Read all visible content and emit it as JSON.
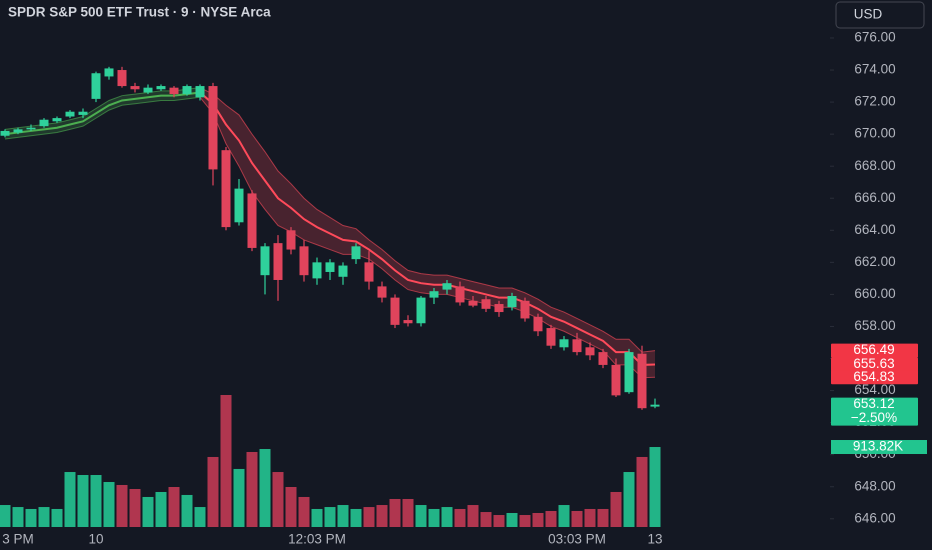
{
  "chart_data": {
    "type": "candlestick",
    "title": "SPDR S&P 500 ETF Trust · 9 · NYSE Arca",
    "currency": "USD",
    "categories": [
      null,
      "3 PM",
      null,
      null,
      null,
      null,
      null,
      "10",
      null,
      null,
      null,
      null,
      null,
      null,
      null,
      null,
      null,
      null,
      null,
      null,
      null,
      null,
      null,
      null,
      "12:03 PM",
      null,
      null,
      null,
      null,
      null,
      null,
      null,
      null,
      null,
      null,
      null,
      null,
      null,
      null,
      null,
      null,
      null,
      null,
      null,
      "03:03 PM",
      null,
      null,
      null,
      null,
      null,
      "13"
    ],
    "open": [
      669.9,
      670.1,
      670.3,
      670.5,
      670.8,
      671.1,
      671.2,
      672.2,
      673.6,
      674.0,
      673.0,
      672.6,
      672.8,
      672.9,
      672.5,
      672.3,
      673.0,
      669.0,
      664.5,
      666.3,
      661.2,
      663.2,
      664.0,
      663.0,
      661.0,
      661.4,
      661.1,
      662.2,
      662.0,
      660.5,
      659.8,
      658.4,
      658.2,
      659.8,
      660.3,
      660.5,
      659.6,
      659.7,
      659.4,
      659.2,
      659.6,
      658.6,
      657.9,
      656.7,
      657.2,
      656.7,
      656.4,
      655.6,
      653.9,
      656.3,
      653.0
    ],
    "high": [
      670.3,
      670.4,
      670.6,
      671.0,
      671.1,
      671.5,
      671.6,
      673.9,
      674.2,
      674.2,
      673.2,
      673.1,
      673.1,
      673.0,
      673.1,
      673.1,
      673.2,
      669.2,
      667.2,
      666.5,
      663.2,
      663.7,
      664.2,
      663.4,
      662.3,
      662.2,
      662.0,
      663.2,
      662.7,
      660.8,
      660.0,
      658.7,
      659.9,
      660.4,
      660.9,
      660.8,
      659.9,
      659.9,
      659.6,
      660.1,
      659.8,
      658.8,
      658.1,
      657.4,
      657.6,
      657.0,
      656.6,
      656.0,
      656.6,
      656.8,
      653.5
    ],
    "low": [
      669.8,
      670.0,
      670.2,
      670.4,
      670.7,
      671.0,
      671.0,
      672.0,
      673.4,
      672.9,
      672.6,
      672.5,
      672.7,
      672.3,
      672.4,
      672.1,
      666.8,
      664.0,
      664.3,
      662.7,
      660.0,
      659.6,
      662.5,
      660.8,
      660.6,
      660.9,
      660.6,
      661.9,
      660.3,
      659.5,
      657.9,
      658.0,
      658.0,
      659.4,
      660.0,
      659.3,
      659.2,
      658.9,
      658.6,
      659.0,
      658.3,
      657.4,
      656.6,
      656.5,
      656.2,
      655.9,
      655.4,
      653.6,
      653.8,
      652.8,
      652.9
    ],
    "close": [
      670.2,
      670.3,
      670.4,
      670.9,
      671.0,
      671.4,
      671.4,
      673.8,
      674.1,
      673.0,
      672.8,
      672.9,
      673.0,
      672.5,
      673.0,
      673.0,
      667.8,
      664.2,
      666.6,
      662.9,
      663.0,
      660.9,
      662.8,
      661.2,
      662.0,
      662.0,
      661.8,
      663.0,
      660.8,
      659.8,
      658.1,
      658.2,
      659.8,
      660.2,
      660.7,
      659.5,
      659.3,
      659.1,
      658.9,
      659.9,
      658.5,
      657.7,
      656.8,
      657.2,
      656.4,
      656.2,
      655.6,
      653.7,
      656.4,
      652.9,
      653.12
    ],
    "volume": [
      251000,
      228000,
      206000,
      228000,
      206000,
      628000,
      594000,
      594000,
      514000,
      480000,
      434000,
      343000,
      400000,
      457000,
      366000,
      228000,
      800000,
      1508000,
      663000,
      857000,
      891000,
      628000,
      457000,
      343000,
      206000,
      228000,
      251000,
      206000,
      228000,
      251000,
      320000,
      320000,
      251000,
      206000,
      228000,
      206000,
      251000,
      171000,
      137000,
      160000,
      137000,
      160000,
      183000,
      251000,
      183000,
      206000,
      206000,
      400000,
      628000,
      800000,
      913820
    ],
    "volume_last_label": "913.82K",
    "ema_mid": [
      670.0,
      670.1,
      670.2,
      670.3,
      670.4,
      670.6,
      670.8,
      671.3,
      671.8,
      672.1,
      672.2,
      672.3,
      672.4,
      672.4,
      672.5,
      672.6,
      671.9,
      670.6,
      669.6,
      668.2,
      667.1,
      666.0,
      665.4,
      664.7,
      664.2,
      663.8,
      663.4,
      663.3,
      662.8,
      662.2,
      661.5,
      660.9,
      660.7,
      660.6,
      660.6,
      660.4,
      660.2,
      660.0,
      659.8,
      659.8,
      659.5,
      659.1,
      658.6,
      658.3,
      657.9,
      657.5,
      657.1,
      656.4,
      656.4,
      655.6,
      655.63
    ],
    "ema_upper": [
      670.3,
      670.4,
      670.5,
      670.6,
      670.7,
      670.9,
      671.1,
      671.6,
      672.1,
      672.4,
      672.5,
      672.6,
      672.7,
      672.7,
      672.8,
      672.9,
      672.5,
      671.8,
      671.2,
      670.0,
      668.9,
      667.7,
      666.9,
      666.0,
      665.3,
      664.8,
      664.3,
      664.1,
      663.4,
      662.8,
      662.1,
      661.5,
      661.3,
      661.2,
      661.2,
      661.0,
      660.8,
      660.6,
      660.4,
      660.4,
      660.1,
      659.7,
      659.2,
      658.9,
      658.5,
      658.1,
      657.7,
      657.2,
      657.2,
      656.4,
      656.49
    ],
    "ema_lower": [
      669.7,
      669.8,
      669.9,
      670.0,
      670.1,
      670.3,
      670.5,
      671.0,
      671.5,
      671.8,
      671.9,
      672.0,
      672.1,
      672.1,
      672.2,
      672.3,
      671.3,
      669.4,
      668.0,
      666.4,
      665.3,
      664.3,
      663.9,
      663.4,
      663.1,
      662.8,
      662.5,
      662.5,
      662.2,
      661.6,
      660.9,
      660.3,
      660.1,
      660.0,
      660.0,
      659.8,
      659.6,
      659.4,
      659.2,
      659.2,
      658.9,
      658.5,
      658.0,
      657.7,
      657.3,
      656.9,
      656.5,
      655.6,
      655.6,
      654.8,
      654.83
    ],
    "price_labels": [
      {
        "value": 656.49,
        "color": "#f23645"
      },
      {
        "value": 655.63,
        "color": "#f23645"
      },
      {
        "value": 654.83,
        "color": "#f23645"
      },
      {
        "value": 653.12,
        "color": "#22c58f"
      }
    ],
    "change": {
      "value": -2.5,
      "label": "−2.50%"
    },
    "colors": {
      "up": "#2fd19b",
      "down": "#e0445c",
      "volume_up": "#22b487",
      "volume_down": "#b0364f",
      "ema_up": "#4caf50",
      "ema_down": "#ff4a5a"
    },
    "ylim": [
      645.3,
      678.37
    ],
    "yticks": [
      {
        "value": 646,
        "label": "646.00"
      },
      {
        "value": 648,
        "label": "648.00"
      },
      {
        "value": 650,
        "label": "650.00"
      },
      {
        "value": 652,
        "label": "652.00"
      },
      {
        "value": 654,
        "label": "654.00"
      },
      {
        "value": 656,
        "label": "656.00"
      },
      {
        "value": 658,
        "label": "658.00"
      },
      {
        "value": 660,
        "label": "660.00"
      },
      {
        "value": 662,
        "label": "662.00"
      },
      {
        "value": 664,
        "label": "664.00"
      },
      {
        "value": 666,
        "label": "666.00"
      },
      {
        "value": 668,
        "label": "668.00"
      },
      {
        "value": 670,
        "label": "670.00"
      },
      {
        "value": 672,
        "label": "672.00"
      },
      {
        "value": 674,
        "label": "674.00"
      },
      {
        "value": 676,
        "label": "676.00"
      }
    ]
  }
}
